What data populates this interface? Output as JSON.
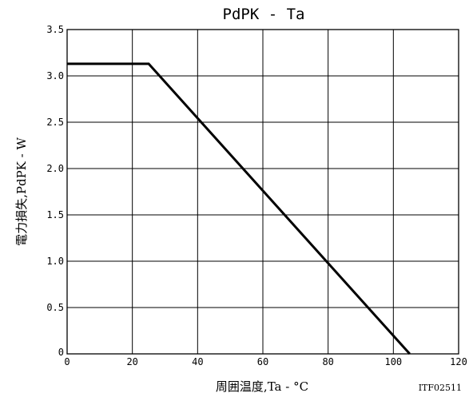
{
  "chart_data": {
    "type": "line",
    "title": "PdPK - Ta",
    "xlabel": "周囲温度,Ta - °C",
    "ylabel": "電力損失,PdPK - W",
    "xlim": [
      0,
      120
    ],
    "ylim": [
      0,
      3.5
    ],
    "x_ticks": [
      "0",
      "20",
      "40",
      "60",
      "80",
      "100",
      "120"
    ],
    "y_ticks": [
      "0",
      "0.5",
      "1.0",
      "1.5",
      "2.0",
      "2.5",
      "3.0",
      "3.5"
    ],
    "x_tick_values": [
      0,
      20,
      40,
      60,
      80,
      100,
      120
    ],
    "y_tick_values": [
      0,
      0.5,
      1.0,
      1.5,
      2.0,
      2.5,
      3.0,
      3.5
    ],
    "grid": true,
    "legend": "none",
    "series": [
      {
        "x": [
          0,
          25,
          105
        ],
        "y": [
          3.13,
          3.13,
          0
        ]
      }
    ],
    "code": "ITF02511"
  }
}
